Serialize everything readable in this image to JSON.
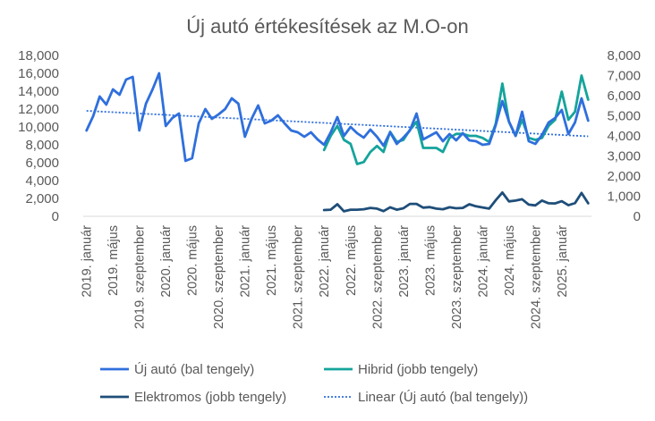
{
  "chart_data": {
    "type": "line",
    "title": "Új autó értékesítések az M.O-on",
    "x_tick_labels": [
      "2019. január",
      "2019. május",
      "2019. szeptember",
      "2020. január",
      "2020. május",
      "2020. szeptember",
      "2021. január",
      "2021. május",
      "2021. szeptember",
      "2022. január",
      "2022. május",
      "2022. szeptember",
      "2023. január",
      "2023. május",
      "2023. szeptember",
      "2024. január",
      "2024. május",
      "2024. szeptember",
      "2025. január"
    ],
    "y_left": {
      "min": 0,
      "max": 18000,
      "ticks": [
        "0",
        "2,000",
        "4,000",
        "6,000",
        "8,000",
        "10,000",
        "12,000",
        "14,000",
        "16,000",
        "18,000"
      ]
    },
    "y_right": {
      "min": 0,
      "max": 8000,
      "ticks": [
        "0",
        "1,000",
        "2,000",
        "3,000",
        "4,000",
        "5,000",
        "6,000",
        "7,000",
        "8,000"
      ]
    },
    "series": [
      {
        "name": "Új autó (bal tengely)",
        "axis": "left",
        "color": "#2f6fdc",
        "start": "2019-01",
        "values": [
          9600,
          11200,
          13400,
          12500,
          14200,
          13600,
          15300,
          15600,
          9600,
          12600,
          14200,
          16000,
          10100,
          11000,
          11500,
          6200,
          6500,
          10400,
          12000,
          10900,
          11400,
          12000,
          13200,
          12600,
          8900,
          10900,
          12400,
          10400,
          10700,
          11300,
          10400,
          9600,
          9400,
          8900,
          9400,
          8600,
          8000,
          9400,
          11100,
          9000,
          10000,
          9300,
          8800,
          9700,
          8900,
          7900,
          9400,
          8100,
          8800,
          9600,
          11500,
          8600,
          9000,
          9400,
          8400,
          9200,
          8500,
          9300,
          8500,
          8400,
          8000,
          8100,
          10200,
          12900,
          10600,
          9000,
          11700,
          8400,
          8100,
          9100,
          10500,
          11000,
          11900,
          9200,
          10500,
          13200,
          10700
        ]
      },
      {
        "name": "Hibrid (jobb tengely)",
        "axis": "right",
        "color": "#14a49b",
        "start": "2022-01",
        "values": [
          3300,
          4000,
          4500,
          3800,
          3600,
          2600,
          2700,
          3200,
          3500,
          3200,
          4200,
          3700,
          3800,
          4300,
          4700,
          3400,
          3400,
          3400,
          3200,
          3900,
          4100,
          4100,
          4000,
          4000,
          3900,
          3700,
          4600,
          6600,
          4700,
          4000,
          4800,
          3900,
          3800,
          3900,
          4500,
          4800,
          6200,
          4800,
          5200,
          7000,
          5800
        ]
      },
      {
        "name": "Elektromos (jobb tengely)",
        "axis": "right",
        "color": "#1f4e79",
        "start": "2022-01",
        "values": [
          310,
          330,
          600,
          250,
          330,
          330,
          350,
          420,
          380,
          260,
          450,
          330,
          400,
          620,
          620,
          430,
          460,
          380,
          350,
          450,
          400,
          420,
          600,
          500,
          440,
          380,
          800,
          1180,
          740,
          780,
          850,
          580,
          540,
          780,
          650,
          640,
          750,
          550,
          660,
          1160,
          650
        ]
      }
    ],
    "trendline": {
      "name": "Linear (Új autó (bal tengely))",
      "of_series": "Új autó (bal tengely)",
      "axis": "left",
      "color": "#2f6fdc",
      "style": "dotted",
      "start_value": 11800,
      "end_value": 8950
    },
    "legend": {
      "position": "bottom",
      "columns": 2
    },
    "grid": false
  }
}
